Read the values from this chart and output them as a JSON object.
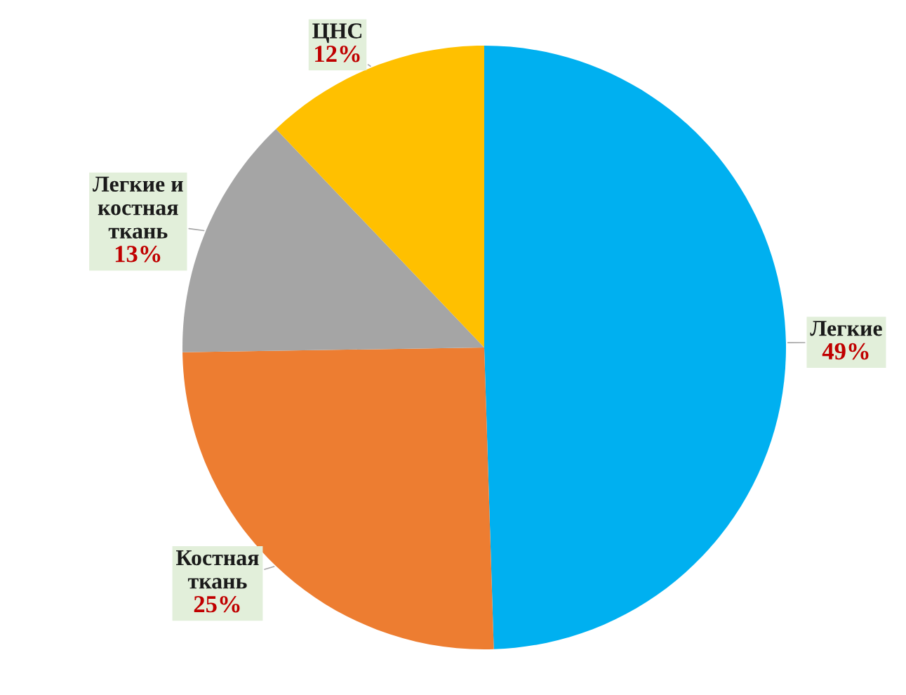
{
  "chart_data": {
    "type": "pie",
    "categories": [
      "Легкие",
      "Костная\nткань",
      "Легкие и\nкостная\nткань",
      "ЦНС"
    ],
    "values": [
      49,
      25,
      13,
      12
    ],
    "value_labels": [
      "49%",
      "25%",
      "13%",
      "12%"
    ],
    "colors": [
      "#00b0f0",
      "#ed7d31",
      "#a5a5a5",
      "#ffc000"
    ],
    "legend": false
  }
}
